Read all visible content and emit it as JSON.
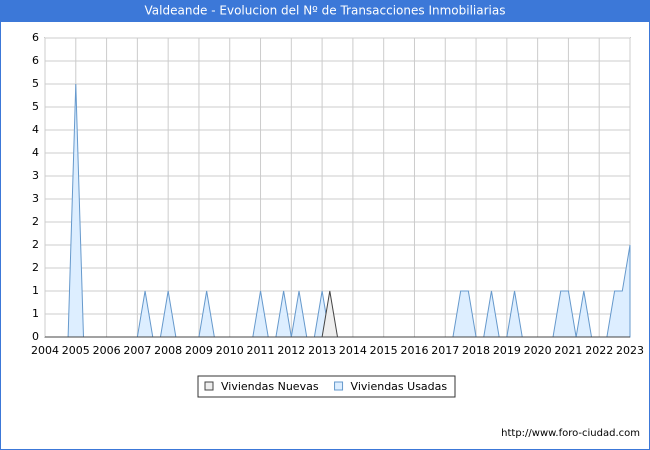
{
  "chart_data": {
    "type": "area",
    "title": "Valdeande - Evolucion del Nº de Transacciones Inmobiliarias",
    "source": "http://www.foro-ciudad.com",
    "x": [
      2004,
      2004.25,
      2004.5,
      2004.75,
      2005,
      2005.25,
      2005.5,
      2005.75,
      2006,
      2006.25,
      2006.5,
      2006.75,
      2007,
      2007.25,
      2007.5,
      2007.75,
      2008,
      2008.25,
      2008.5,
      2008.75,
      2009,
      2009.25,
      2009.5,
      2009.75,
      2010,
      2010.25,
      2010.5,
      2010.75,
      2011,
      2011.25,
      2011.5,
      2011.75,
      2012,
      2012.25,
      2012.5,
      2012.75,
      2013,
      2013.25,
      2013.5,
      2013.75,
      2014,
      2014.25,
      2014.5,
      2014.75,
      2015,
      2015.25,
      2015.5,
      2015.75,
      2016,
      2016.25,
      2016.5,
      2016.75,
      2017,
      2017.25,
      2017.5,
      2017.75,
      2018,
      2018.25,
      2018.5,
      2018.75,
      2019,
      2019.25,
      2019.5,
      2019.75,
      2020,
      2020.25,
      2020.5,
      2020.75,
      2021,
      2021.25,
      2021.5,
      2021.75,
      2022,
      2022.25,
      2022.5,
      2022.75,
      2023
    ],
    "series": [
      {
        "name": "Viviendas Usadas",
        "color": "#ddeeff",
        "stroke": "#6699cc",
        "values": [
          0,
          0,
          0,
          0,
          5.5,
          0,
          0,
          0,
          0,
          0,
          0,
          0,
          0,
          1,
          0,
          0,
          1,
          0,
          0,
          0,
          0,
          1,
          0,
          0,
          0,
          0,
          0,
          0,
          1,
          0,
          0,
          1,
          0,
          1,
          0,
          0,
          1,
          0,
          0,
          0,
          0,
          0,
          0,
          0,
          0,
          0,
          0,
          0,
          0,
          0,
          0,
          0,
          0,
          0,
          1,
          1,
          0,
          0,
          1,
          0,
          0,
          1,
          0,
          0,
          0,
          0,
          0,
          1,
          1,
          0,
          1,
          0,
          0,
          0,
          1,
          1,
          2
        ]
      },
      {
        "name": "Viviendas Nuevas",
        "color": "#eeeeee",
        "stroke": "#444444",
        "values": [
          0,
          0,
          0,
          0,
          0,
          0,
          0,
          0,
          0,
          0,
          0,
          0,
          0,
          0,
          0,
          0,
          0,
          0,
          0,
          0,
          0,
          0,
          0,
          0,
          0,
          0,
          0,
          0,
          0,
          0,
          0,
          0,
          0,
          0,
          0,
          0,
          0,
          1,
          0,
          0,
          0,
          0,
          0,
          0,
          0,
          0,
          0,
          0,
          0,
          0,
          0,
          0,
          0,
          0,
          0,
          0,
          0,
          0,
          0,
          0,
          0,
          0,
          0,
          0,
          0,
          0,
          0,
          0,
          0,
          0,
          0,
          0,
          0,
          0,
          0,
          0,
          0
        ]
      }
    ],
    "legend_order": [
      1,
      0
    ],
    "xlim": [
      2004,
      2023
    ],
    "xticks": [
      2004,
      2005,
      2006,
      2007,
      2008,
      2009,
      2010,
      2011,
      2012,
      2013,
      2014,
      2015,
      2016,
      2017,
      2018,
      2019,
      2020,
      2021,
      2022,
      2023
    ],
    "ylim": [
      0,
      6.5
    ],
    "yticks": [
      0,
      {
        "value": 0.5,
        "label": "1"
      },
      1,
      {
        "value": 1.5,
        "label": "2"
      },
      2,
      {
        "value": 2.5,
        "label": "2"
      },
      3,
      {
        "value": 3.5,
        "label": "3"
      },
      4,
      {
        "value": 4.5,
        "label": "4"
      },
      5,
      {
        "value": 5.5,
        "label": "5"
      },
      6,
      {
        "value": 6.5,
        "label": "6"
      }
    ],
    "grid": true
  }
}
